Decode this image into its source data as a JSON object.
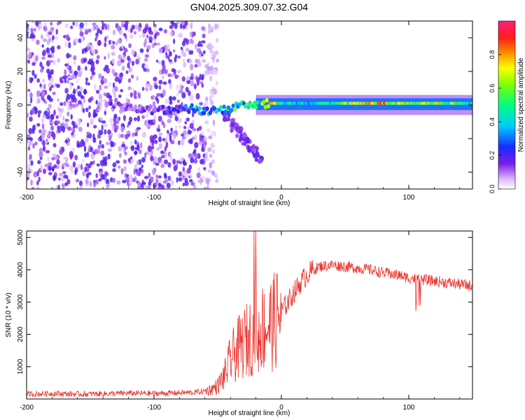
{
  "title": "GN04.2025.309.07.32.G04",
  "colors": {
    "snr_line": "#e8322a",
    "scatter_purple": "#7a1ee6",
    "axis": "#000000"
  },
  "chart_data": [
    {
      "type": "heatmap",
      "title": "GN04.2025.309.07.32.G04",
      "xlabel": "Height of straight line (km)",
      "ylabel": "Frequency (Hz)",
      "xlim": [
        -200,
        150
      ],
      "ylim": [
        -50,
        50
      ],
      "x_ticks": [
        -200,
        -100,
        0,
        100
      ],
      "x_tick_labels": [
        "-200",
        "-100",
        "0",
        "100"
      ],
      "y_ticks": [
        -40,
        -20,
        0,
        20,
        40
      ],
      "y_tick_labels": [
        "-40",
        "-20",
        "0",
        "20",
        "40"
      ],
      "colorbar": {
        "label": "Normalized spectral amplitude",
        "range": [
          0,
          1
        ],
        "ticks": [
          0,
          0.2,
          0.4,
          0.6,
          0.8
        ],
        "tick_labels": [
          "0.0",
          "0.2",
          "0.4",
          "0.6",
          "0.8"
        ],
        "colormap": "rainbow"
      },
      "noise_region_x": [
        -200,
        -60
      ],
      "ridge": [
        {
          "x": -135,
          "f": 0,
          "a": 0.18
        },
        {
          "x": -120,
          "f": -2,
          "a": 0.15
        },
        {
          "x": -100,
          "f": -3,
          "a": 0.2
        },
        {
          "x": -80,
          "f": -3,
          "a": 0.25
        },
        {
          "x": -70,
          "f": -2,
          "a": 0.4
        },
        {
          "x": -60,
          "f": -4,
          "a": 0.45
        },
        {
          "x": -50,
          "f": -3,
          "a": 0.5
        },
        {
          "x": -40,
          "f": -2,
          "a": 0.55
        },
        {
          "x": -30,
          "f": 0,
          "a": 0.6
        },
        {
          "x": -20,
          "f": 0,
          "a": 0.8
        },
        {
          "x": -10,
          "f": 1,
          "a": 0.85
        },
        {
          "x": 0,
          "f": 1,
          "a": 0.5
        },
        {
          "x": 20,
          "f": 1,
          "a": 0.45
        },
        {
          "x": 40,
          "f": 1,
          "a": 0.55
        },
        {
          "x": 60,
          "f": 1,
          "a": 0.75
        },
        {
          "x": 80,
          "f": 1,
          "a": 0.85
        },
        {
          "x": 100,
          "f": 1,
          "a": 0.6
        },
        {
          "x": 120,
          "f": 1,
          "a": 0.75
        },
        {
          "x": 150,
          "f": 1,
          "a": 0.5
        }
      ]
    },
    {
      "type": "line",
      "xlabel": "Height of straight line (km)",
      "ylabel": "SNR (10 * v/v)",
      "xlim": [
        -200,
        150
      ],
      "ylim": [
        0,
        5200
      ],
      "x_ticks": [
        -200,
        -100,
        0,
        100
      ],
      "x_tick_labels": [
        "-200",
        "-100",
        "0",
        "100"
      ],
      "y_ticks": [
        1000,
        2000,
        3000,
        4000,
        5000
      ],
      "y_tick_labels": [
        "1000",
        "2000",
        "3000",
        "4000",
        "5000"
      ],
      "series": [
        {
          "name": "SNR",
          "x": [
            -200,
            -180,
            -160,
            -140,
            -120,
            -100,
            -80,
            -70,
            -60,
            -55,
            -50,
            -45,
            -40,
            -35,
            -30,
            -25,
            -20,
            -15,
            -10,
            -5,
            0,
            5,
            10,
            15,
            20,
            25,
            30,
            40,
            50,
            60,
            70,
            80,
            90,
            95,
            100,
            110,
            120,
            130,
            140,
            150
          ],
          "y": [
            150,
            170,
            150,
            160,
            180,
            170,
            190,
            200,
            240,
            300,
            400,
            700,
            1200,
            1500,
            1700,
            1900,
            2100,
            2200,
            2300,
            2400,
            2700,
            3000,
            3300,
            3600,
            3850,
            4000,
            4100,
            4150,
            4100,
            4050,
            4000,
            3900,
            3850,
            3800,
            3750,
            3700,
            3650,
            3600,
            3550,
            3500
          ]
        }
      ]
    }
  ]
}
